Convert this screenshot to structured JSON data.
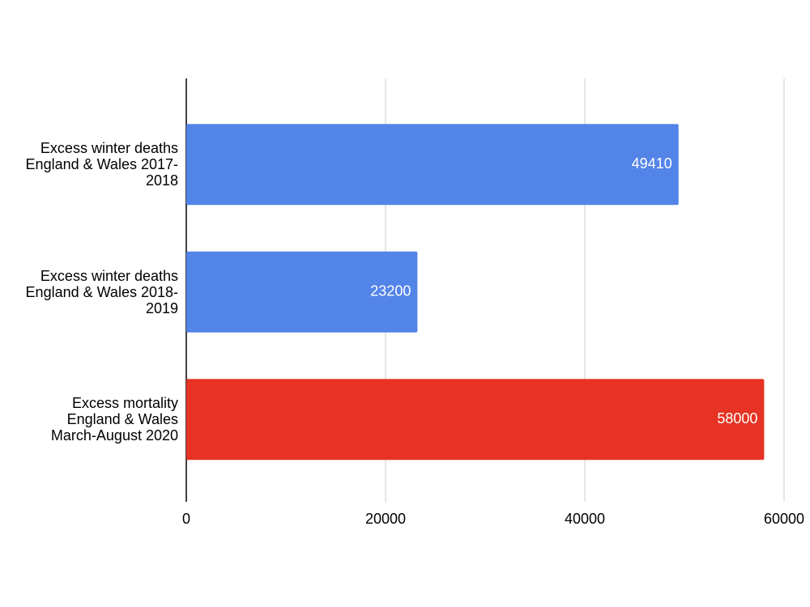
{
  "chart_data": {
    "type": "hbar",
    "categories": [
      "Excess winter deaths England & Wales 2017-2018",
      "Excess winter deaths England & Wales 2018-2019",
      "Excess mortality England & Wales March-August 2020"
    ],
    "values": [
      49410,
      23200,
      58000
    ],
    "colors": [
      "#5384e8",
      "#5384e8",
      "#e63323"
    ],
    "xlim": [
      0,
      60000
    ],
    "xticks": [
      0,
      20000,
      40000,
      60000
    ],
    "grid": true
  }
}
